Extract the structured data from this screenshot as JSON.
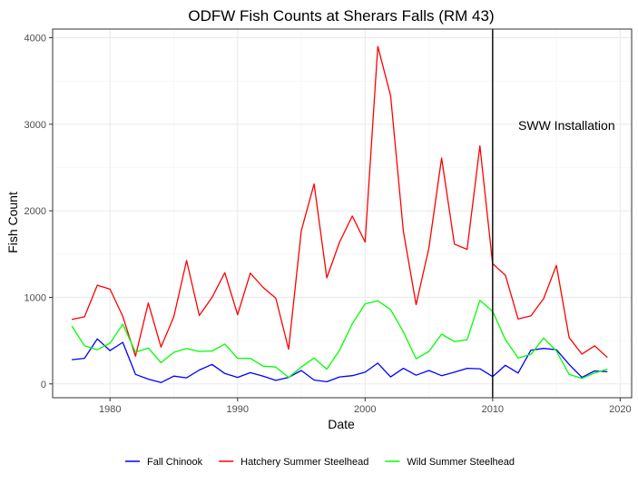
{
  "chart_data": {
    "type": "line",
    "title": "ODFW Fish Counts at Sherars Falls (RM 43)",
    "xlabel": "Date",
    "ylabel": "Fish Count",
    "xlim": [
      1975.5,
      2020.9
    ],
    "ylim": [
      -160,
      4100
    ],
    "x_ticks": [
      1980,
      1990,
      2000,
      2010,
      2020
    ],
    "y_ticks": [
      0,
      1000,
      2000,
      3000,
      4000
    ],
    "grid": true,
    "legend_position": "bottom",
    "x": [
      1977,
      1978,
      1979,
      1980,
      1981,
      1982,
      1983,
      1984,
      1985,
      1986,
      1987,
      1988,
      1989,
      1990,
      1991,
      1992,
      1993,
      1994,
      1995,
      1996,
      1997,
      1998,
      1999,
      2000,
      2001,
      2002,
      2003,
      2004,
      2005,
      2006,
      2007,
      2008,
      2009,
      2010,
      2011,
      2012,
      2013,
      2014,
      2015,
      2016,
      2017,
      2018,
      2019
    ],
    "series": [
      {
        "name": "Fall Chinook",
        "color": "#0000ff",
        "values": [
          280,
          295,
          520,
          385,
          480,
          110,
          55,
          15,
          90,
          70,
          160,
          225,
          120,
          75,
          130,
          90,
          40,
          75,
          155,
          45,
          25,
          80,
          95,
          135,
          240,
          80,
          180,
          100,
          155,
          95,
          135,
          180,
          175,
          85,
          215,
          125,
          390,
          410,
          395,
          225,
          75,
          150,
          140
        ]
      },
      {
        "name": "Hatchery Summer Steelhead",
        "color": "#ff0000",
        "values": [
          745,
          775,
          1140,
          1095,
          780,
          320,
          935,
          425,
          775,
          1425,
          790,
          1000,
          1285,
          800,
          1280,
          1115,
          990,
          400,
          1770,
          2310,
          1225,
          1640,
          1940,
          1640,
          3900,
          3330,
          1760,
          915,
          1570,
          2610,
          1615,
          1555,
          2750,
          1390,
          1255,
          750,
          785,
          985,
          1370,
          535,
          345,
          440,
          305
        ]
      },
      {
        "name": "Wild Summer Steelhead",
        "color": "#00ff00",
        "values": [
          670,
          440,
          395,
          470,
          690,
          365,
          415,
          245,
          365,
          410,
          375,
          380,
          460,
          295,
          295,
          205,
          195,
          75,
          195,
          300,
          170,
          390,
          695,
          925,
          960,
          860,
          600,
          290,
          375,
          575,
          490,
          510,
          965,
          840,
          510,
          300,
          340,
          530,
          380,
          110,
          65,
          125,
          170
        ]
      }
    ],
    "annotations": [
      {
        "type": "vline",
        "x": 2010,
        "color": "#000000"
      },
      {
        "type": "text",
        "x": 2015.8,
        "y": 2990,
        "text": "SWW Installation"
      }
    ]
  }
}
